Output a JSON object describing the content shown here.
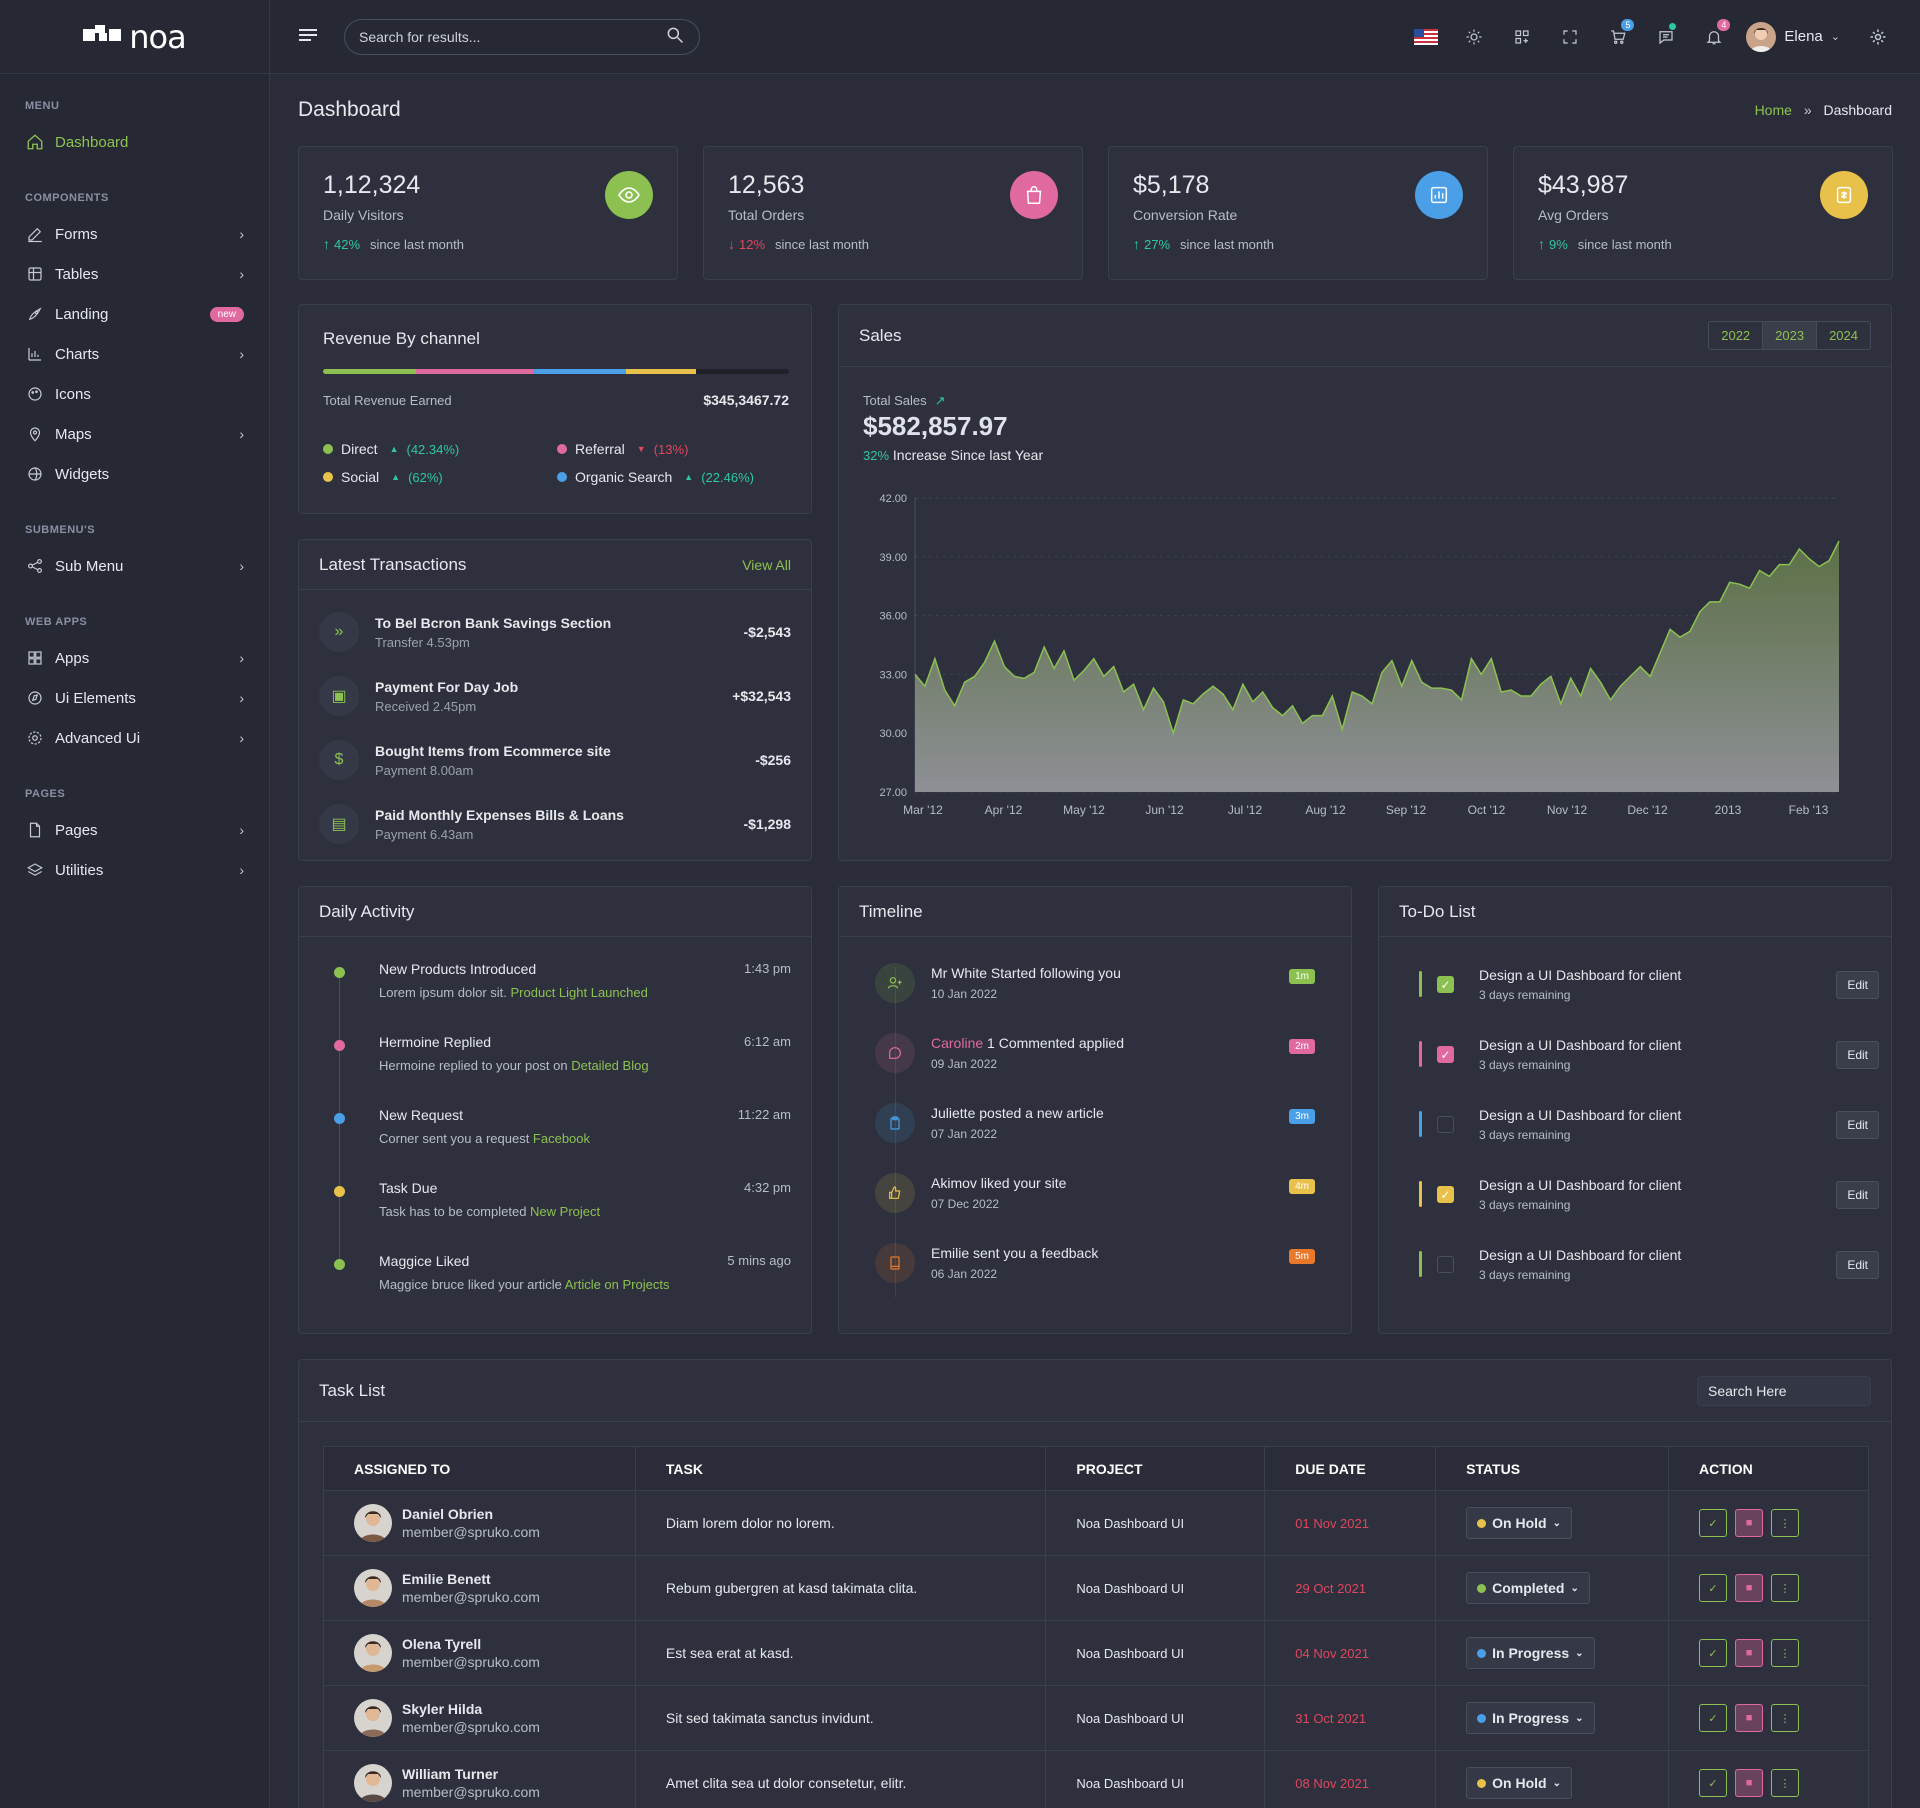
{
  "brand": {
    "name": "noa"
  },
  "sidebar": {
    "sections": {
      "menu": "MENU",
      "components": "COMPONENTS",
      "submenus": "SUBMENU'S",
      "webapps": "WEB APPS",
      "pages": "PAGES"
    },
    "items": {
      "dashboard": "Dashboard",
      "forms": "Forms",
      "tables": "Tables",
      "landing": "Landing",
      "landing_badge": "new",
      "charts": "Charts",
      "icons": "Icons",
      "maps": "Maps",
      "widgets": "Widgets",
      "submenu": "Sub Menu",
      "apps": "Apps",
      "ui_elements": "Ui Elements",
      "advanced_ui": "Advanced Ui",
      "pages": "Pages",
      "utilities": "Utilities"
    }
  },
  "header": {
    "search_placeholder": "Search for results...",
    "cart_count": "5",
    "notif_count": "4",
    "user_name": "Elena"
  },
  "page": {
    "title": "Dashboard",
    "crumb_home": "Home",
    "crumb_sep": "»",
    "crumb_current": "Dashboard"
  },
  "stats": [
    {
      "value": "1,12,324",
      "label": "Daily Visitors",
      "change": "42%",
      "dir": "up",
      "since": "since last month",
      "color": "#8cc152"
    },
    {
      "value": "12,563",
      "label": "Total Orders",
      "change": "12%",
      "dir": "down",
      "since": "since last month",
      "color": "#e06aa0"
    },
    {
      "value": "$5,178",
      "label": "Conversion Rate",
      "change": "27%",
      "dir": "up",
      "since": "since last month",
      "color": "#4a9fe6"
    },
    {
      "value": "$43,987",
      "label": "Avg Orders",
      "change": "9%",
      "dir": "up",
      "since": "since last month",
      "color": "#e8c14a"
    }
  ],
  "revenue": {
    "title": "Revenue By channel",
    "total_label": "Total Revenue Earned",
    "total_value": "$345,3467.72",
    "channels": [
      {
        "name": "Direct",
        "pct": "(42.34%)",
        "dir": "up",
        "color": "#8cc152",
        "share": 0.2
      },
      {
        "name": "Referral",
        "pct": "(13%)",
        "dir": "down",
        "color": "#e06aa0",
        "share": 0.25
      },
      {
        "name": "Social",
        "pct": "(62%)",
        "dir": "up",
        "color": "#e8c14a",
        "share": 0.15
      },
      {
        "name": "Organic Search",
        "pct": "(22.46%)",
        "dir": "up",
        "color": "#4a9fe6",
        "share": 0.2
      }
    ]
  },
  "transactions": {
    "title": "Latest Transactions",
    "view_all": "View All",
    "items": [
      {
        "title": "To Bel Bcron Bank Savings Section",
        "sub": "Transfer 4.53pm",
        "amount": "-$2,543",
        "icon": "double-chevron-icon"
      },
      {
        "title": "Payment For  Day Job",
        "sub": "Received 2.45pm",
        "amount": "+$32,543",
        "icon": "briefcase-icon"
      },
      {
        "title": "Bought Items from Ecommerce site",
        "sub": "Payment 8.00am",
        "amount": "-$256",
        "icon": "dollar-icon"
      },
      {
        "title": "Paid Monthly Expenses Bills & Loans",
        "sub": "Payment 6.43am",
        "amount": "-$1,298",
        "icon": "document-icon"
      }
    ]
  },
  "sales": {
    "title": "Sales",
    "years": [
      "2022",
      "2023",
      "2024"
    ],
    "selected_year": "2023",
    "total_label": "Total Sales",
    "total_value": "$582,857.97",
    "increase_pct": "32%",
    "increase_text": "Increase Since last Year"
  },
  "chart_data": {
    "type": "area",
    "title": "",
    "xlabel": "",
    "ylabel": "",
    "ylim": [
      27,
      42
    ],
    "yticks": [
      "27.00",
      "30.00",
      "33.00",
      "36.00",
      "39.00",
      "42.00"
    ],
    "xticks": [
      "Mar '12",
      "Apr '12",
      "May '12",
      "Jun '12",
      "Jul '12",
      "Aug '12",
      "Sep '12",
      "Oct '12",
      "Nov '12",
      "Dec '12",
      "2013",
      "Feb '13"
    ],
    "grid": true,
    "series": [
      {
        "values": [
          33.0,
          32.4,
          33.8,
          32.2,
          31.4,
          32.6,
          32.9,
          33.6,
          34.7,
          33.4,
          32.9,
          32.8,
          33.1,
          34.4,
          33.3,
          34.2,
          32.7,
          33.2,
          33.8,
          32.9,
          33.4,
          32.1,
          32.5,
          31.2,
          32.3,
          31.6,
          30.0,
          31.7,
          31.5,
          32.0,
          32.4,
          32.0,
          31.2,
          32.5,
          31.6,
          32.1,
          31.3,
          30.9,
          31.4,
          30.5,
          30.9,
          30.9,
          31.9,
          30.2,
          32.1,
          31.9,
          31.5,
          33.1,
          33.7,
          32.4,
          33.7,
          32.6,
          32.3,
          32.3,
          32.2,
          31.7,
          33.8,
          33.0,
          33.8,
          32.1,
          32.2,
          31.9,
          31.9,
          32.5,
          32.9,
          31.5,
          32.8,
          31.9,
          33.3,
          32.6,
          31.7,
          32.4,
          32.9,
          33.4,
          32.9,
          34.1,
          35.3,
          34.9,
          35.2,
          36.2,
          36.7,
          36.7,
          37.7,
          37.6,
          37.4,
          38.3,
          38.0,
          38.6,
          38.6,
          39.4,
          38.9,
          38.5,
          38.8,
          39.8
        ]
      }
    ]
  },
  "activity": {
    "title": "Daily Activity",
    "items": [
      {
        "title": "New Products Introduced",
        "text": "Lorem ipsum dolor sit.",
        "link": "Product Light Launched",
        "time": "1:43 pm",
        "color": "#8cc152"
      },
      {
        "title": "Hermoine Replied",
        "text": "Hermoine replied to your post on",
        "link": "Detailed Blog",
        "time": "6:12 am",
        "color": "#e06aa0"
      },
      {
        "title": "New Request",
        "text": "Corner sent you a request",
        "link": "Facebook",
        "time": "11:22 am",
        "color": "#4a9fe6"
      },
      {
        "title": "Task Due",
        "text": "Task has to be completed",
        "link": "New Project",
        "time": "4:32 pm",
        "color": "#e8c14a"
      },
      {
        "title": "Maggice Liked",
        "text": "Maggice bruce liked your article",
        "link": "Article on Projects",
        "time": "5 mins ago",
        "color": "#8cc152"
      }
    ]
  },
  "timeline": {
    "title": "Timeline",
    "items": [
      {
        "pre": "",
        "text": "Mr White Started following you",
        "date": "10 Jan 2022",
        "badge": "1m",
        "color": "#8cc152",
        "icon": "user-plus-icon"
      },
      {
        "pre": "Caroline",
        "text": " 1 Commented applied",
        "date": "09 Jan 2022",
        "badge": "2m",
        "color": "#e06aa0",
        "icon": "comment-icon"
      },
      {
        "pre": "",
        "text": "Juliette posted a new article",
        "date": "07 Jan 2022",
        "badge": "3m",
        "color": "#4a9fe6",
        "icon": "clipboard-icon"
      },
      {
        "pre": "",
        "text": "Akimov liked your site",
        "date": "07 Dec 2022",
        "badge": "4m",
        "color": "#e8c14a",
        "icon": "thumbs-up-icon"
      },
      {
        "pre": "",
        "text": "Emilie sent you a feedback",
        "date": "06 Jan 2022",
        "badge": "5m",
        "color": "#e8792a",
        "icon": "book-icon"
      }
    ]
  },
  "todo": {
    "title": "To-Do List",
    "edit_label": "Edit",
    "items": [
      {
        "text": "Design a UI Dashboard for client",
        "sub": "3 days remaining",
        "checked": true,
        "color": "#8cc152"
      },
      {
        "text": "Design a UI Dashboard for client",
        "sub": "3 days remaining",
        "checked": true,
        "color": "#e06aa0"
      },
      {
        "text": "Design a UI Dashboard for client",
        "sub": "3 days remaining",
        "checked": false,
        "color": "#4a9fe6"
      },
      {
        "text": "Design a UI Dashboard for client",
        "sub": "3 days remaining",
        "checked": true,
        "color": "#e8c14a"
      },
      {
        "text": "Design a UI Dashboard for client",
        "sub": "3 days remaining",
        "checked": false,
        "color": "#8cc152"
      }
    ]
  },
  "tasks": {
    "title": "Task List",
    "search_placeholder": "Search Here",
    "columns": [
      "ASSIGNED TO",
      "TASK",
      "PROJECT",
      "DUE DATE",
      "STATUS",
      "ACTION"
    ],
    "rows": [
      {
        "name": "Daniel Obrien",
        "email": "member@spruko.com",
        "task": "Diam lorem dolor no lorem.",
        "project": "Noa Dashboard UI",
        "due": "01 Nov 2021",
        "status": "On Hold",
        "status_color": "#e8c14a"
      },
      {
        "name": "Emilie Benett",
        "email": "member@spruko.com",
        "task": "Rebum gubergren at kasd takimata clita.",
        "project": "Noa Dashboard UI",
        "due": "29 Oct 2021",
        "status": "Completed",
        "status_color": "#8cc152"
      },
      {
        "name": "Olena Tyrell",
        "email": "member@spruko.com",
        "task": "Est sea erat at kasd.",
        "project": "Noa Dashboard UI",
        "due": "04 Nov 2021",
        "status": "In Progress",
        "status_color": "#4a9fe6"
      },
      {
        "name": "Skyler Hilda",
        "email": "member@spruko.com",
        "task": "Sit sed takimata sanctus invidunt.",
        "project": "Noa Dashboard UI",
        "due": "31 Oct 2021",
        "status": "In Progress",
        "status_color": "#4a9fe6"
      },
      {
        "name": "William Turner",
        "email": "member@spruko.com",
        "task": "Amet clita sea ut dolor consetetur, elitr.",
        "project": "Noa Dashboard UI",
        "due": "08 Nov 2021",
        "status": "On Hold",
        "status_color": "#e8c14a"
      }
    ]
  },
  "colors": {
    "accent": "#8cc152",
    "pink": "#e06aa0",
    "blue": "#4a9fe6",
    "yellow": "#e8c14a",
    "orange": "#e8792a",
    "up": "#2fc6a5",
    "down": "#e0465e"
  }
}
